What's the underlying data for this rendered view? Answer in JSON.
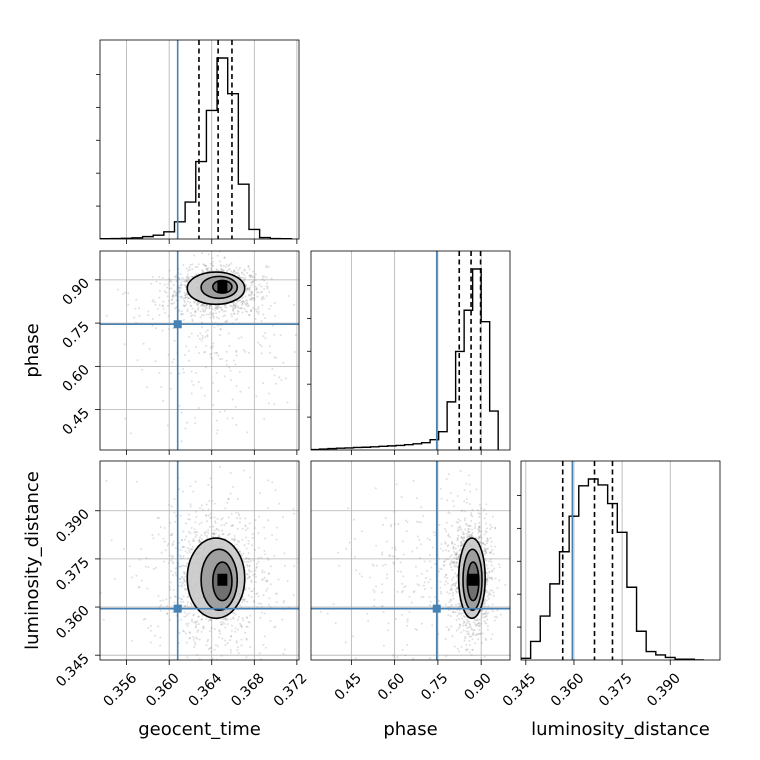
{
  "chart_data": {
    "type": "corner",
    "parameters": [
      "geocent_time",
      "phase",
      "luminosity_distance"
    ],
    "axis_labels": {
      "geocent_time": "geocent_time",
      "phase": "phase",
      "luminosity_distance": "luminosity_distance"
    },
    "ranges": {
      "geocent_time": [
        0.3535,
        0.3722
      ],
      "phase": [
        0.31,
        1.0
      ],
      "luminosity_distance": [
        0.3435,
        0.4055
      ]
    },
    "ticks": {
      "geocent_time": [
        0.356,
        0.36,
        0.364,
        0.368,
        0.372
      ],
      "phase": [
        0.45,
        0.6,
        0.75,
        0.9
      ],
      "luminosity_distance": [
        0.345,
        0.36,
        0.375,
        0.39
      ]
    },
    "tick_labels": {
      "geocent_time": [
        "0.356",
        "0.360",
        "0.364",
        "0.368",
        "0.372"
      ],
      "phase": [
        "0.45",
        "0.60",
        "0.75",
        "0.90"
      ],
      "luminosity_distance": [
        "0.345",
        "0.360",
        "0.375",
        "0.390"
      ]
    },
    "truths": {
      "geocent_time": 0.3608,
      "phase": 0.746,
      "luminosity_distance": 0.3595
    },
    "quantiles": {
      "geocent_time": [
        0.3628,
        0.3646,
        0.3659
      ],
      "phase": [
        0.824,
        0.865,
        0.898
      ],
      "luminosity_distance": [
        0.3565,
        0.3664,
        0.372
      ]
    },
    "histograms": {
      "geocent_time": {
        "edges": [
          0.3535,
          0.3545,
          0.3555,
          0.3565,
          0.3575,
          0.3585,
          0.3595,
          0.3605,
          0.3615,
          0.3625,
          0.3635,
          0.3645,
          0.3655,
          0.3665,
          0.3675,
          0.3685,
          0.3695,
          0.3705,
          0.3715
        ],
        "counts": [
          1,
          2,
          3,
          5,
          10,
          16,
          30,
          72,
          155,
          325,
          540,
          760,
          610,
          230,
          40,
          6,
          2,
          1
        ]
      },
      "phase": {
        "edges": [
          0.31,
          0.3395,
          0.369,
          0.3985,
          0.428,
          0.4575,
          0.487,
          0.5165,
          0.546,
          0.5755,
          0.605,
          0.6345,
          0.664,
          0.6935,
          0.723,
          0.7525,
          0.782,
          0.8115,
          0.841,
          0.8705,
          0.9,
          0.9295,
          0.959
        ],
        "counts": [
          2,
          4,
          6,
          8,
          9,
          11,
          12,
          14,
          16,
          18,
          20,
          23,
          27,
          32,
          45,
          80,
          210,
          430,
          610,
          790,
          560,
          170
        ]
      },
      "luminosity_distance": {
        "edges": [
          0.3435,
          0.3465,
          0.3495,
          0.3525,
          0.3555,
          0.3585,
          0.3615,
          0.3645,
          0.3675,
          0.3705,
          0.3735,
          0.3765,
          0.3795,
          0.3825,
          0.3855,
          0.3885,
          0.3915,
          0.3945,
          0.3975,
          0.4005
        ],
        "counts": [
          2,
          22,
          52,
          90,
          128,
          170,
          206,
          214,
          207,
          185,
          151,
          86,
          34,
          10,
          6,
          3,
          1,
          1,
          0
        ]
      }
    },
    "pairs": [
      {
        "x": "geocent_time",
        "y": "phase",
        "peak": [
          0.365,
          0.876
        ],
        "contour_levels": [
          {
            "center": [
              0.365,
              0.876
            ],
            "half_width": [
              0.0009,
              0.022
            ]
          },
          {
            "center": [
              0.3647,
              0.874
            ],
            "half_width": [
              0.0017,
              0.038
            ]
          },
          {
            "center": [
              0.3644,
              0.871
            ],
            "half_width": [
              0.0027,
              0.056
            ]
          }
        ]
      },
      {
        "x": "geocent_time",
        "y": "luminosity_distance",
        "peak": [
          0.365,
          0.3685
        ],
        "contour_levels": [
          {
            "center": [
              0.365,
              0.368
            ],
            "half_width": [
              0.0009,
              0.006
            ]
          },
          {
            "center": [
              0.3647,
              0.3685
            ],
            "half_width": [
              0.0017,
              0.0095
            ]
          },
          {
            "center": [
              0.3644,
              0.369
            ],
            "half_width": [
              0.0027,
              0.0125
            ]
          }
        ]
      },
      {
        "x": "phase",
        "y": "luminosity_distance",
        "peak": [
          0.872,
          0.3685
        ],
        "contour_levels": [
          {
            "center": [
              0.872,
              0.368
            ],
            "half_width": [
              0.02,
              0.006
            ]
          },
          {
            "center": [
              0.87,
              0.3685
            ],
            "half_width": [
              0.033,
              0.0095
            ]
          },
          {
            "center": [
              0.868,
              0.369
            ],
            "half_width": [
              0.046,
              0.0125
            ]
          }
        ]
      }
    ],
    "colors": {
      "truth": "#4682b4",
      "histogram": "#000000",
      "grid": "#b0b0b0",
      "scatter": "#8c8c8c"
    },
    "grid": true
  }
}
